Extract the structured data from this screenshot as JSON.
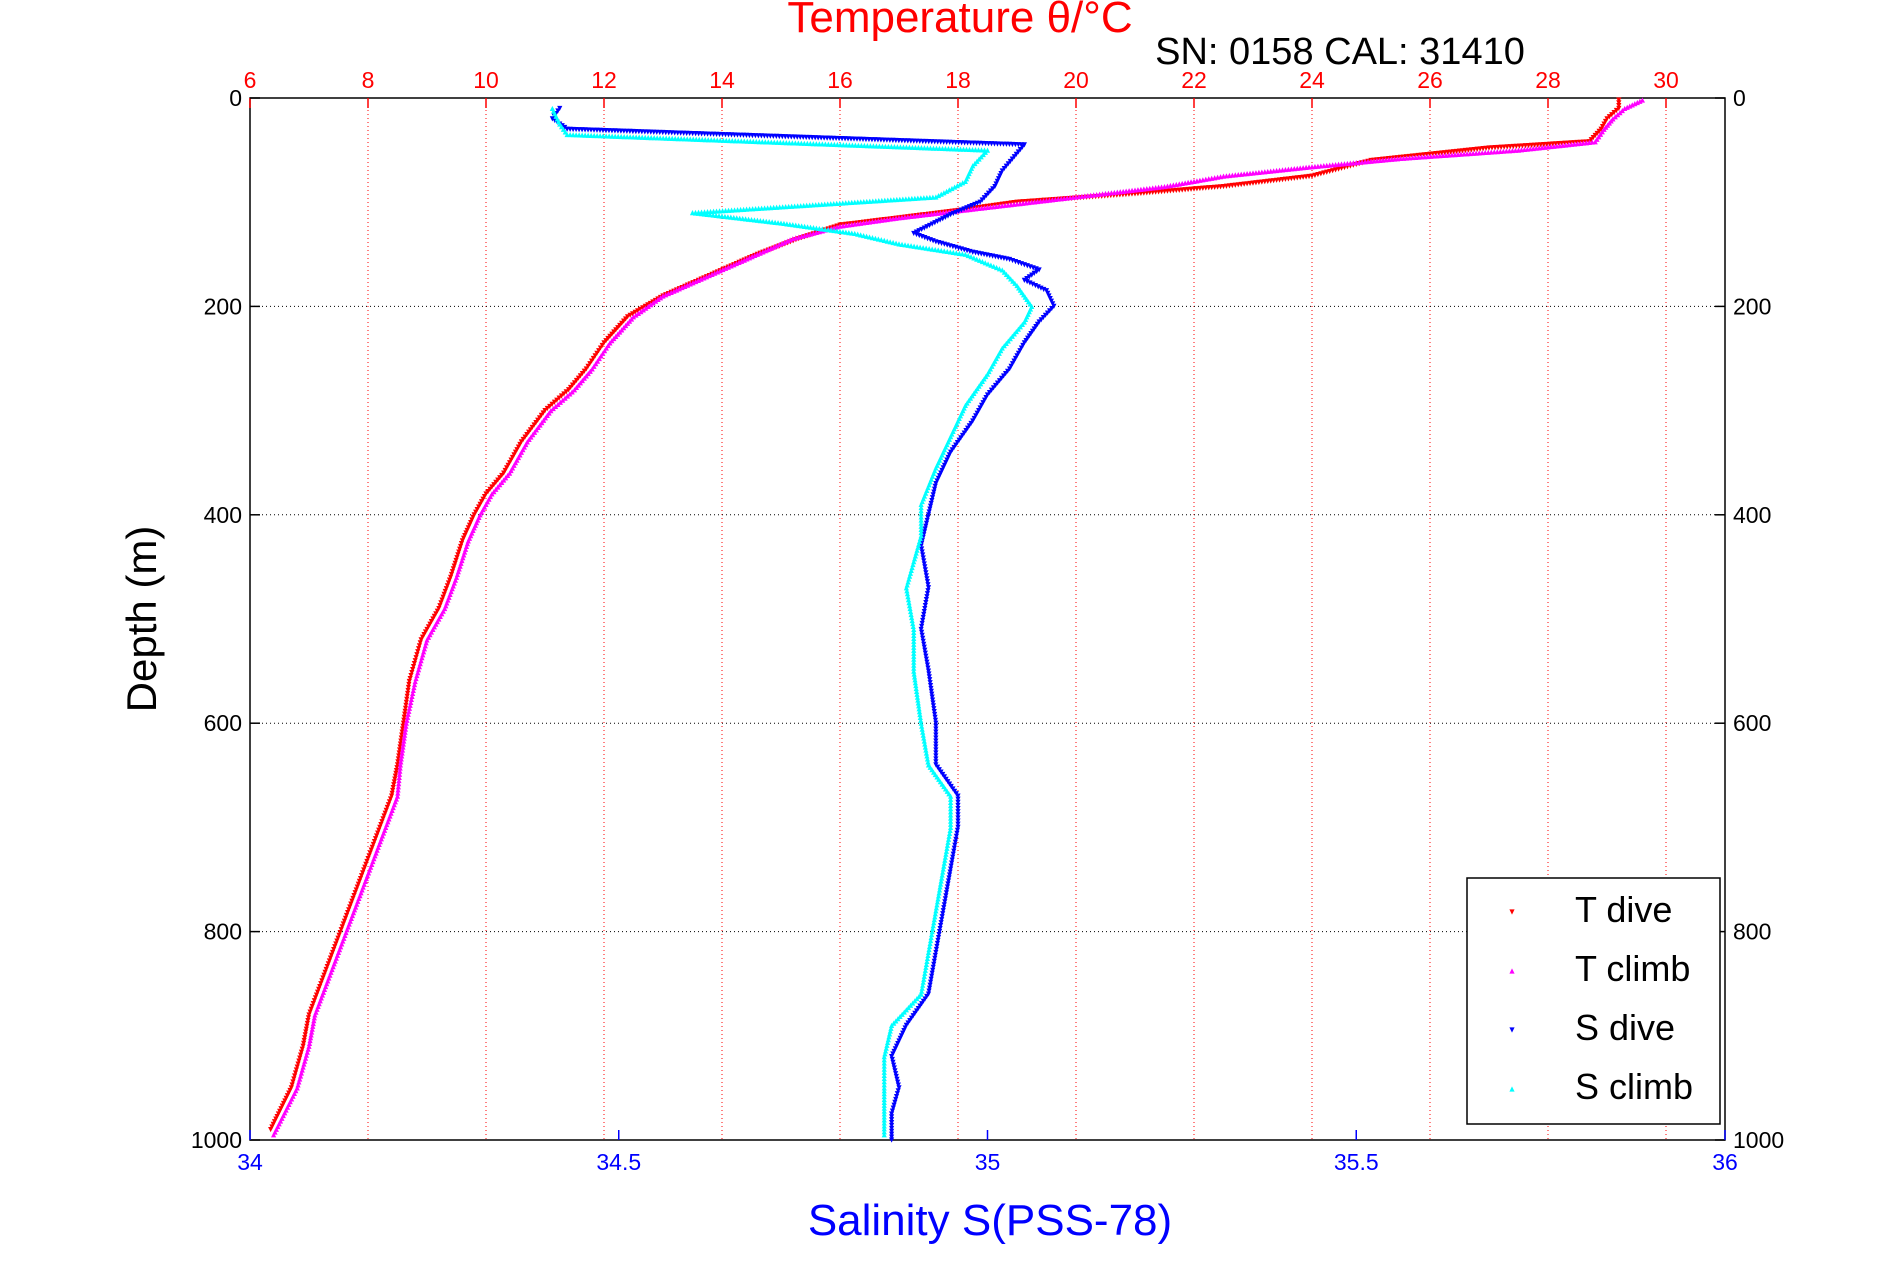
{
  "chart_data": {
    "type": "scatter",
    "top_axis": {
      "label": "Temperature θ/°C",
      "color": "#ff0000",
      "range": [
        6,
        31
      ],
      "ticks": [
        6,
        8,
        10,
        12,
        14,
        16,
        18,
        20,
        22,
        24,
        26,
        28,
        30
      ]
    },
    "bottom_axis": {
      "label": "Salinity S(PSS-78)",
      "color": "#0000ff",
      "range": [
        34,
        36
      ],
      "ticks": [
        "34",
        "34.5",
        "35",
        "35.5",
        "36"
      ]
    },
    "y_axis": {
      "label": "Depth (m)",
      "range": [
        0,
        1000
      ],
      "reversed": true,
      "ticks": [
        0,
        200,
        400,
        600,
        800,
        1000
      ]
    },
    "subtitle": "SN: 0158  CAL: 31410",
    "grid": "dotted",
    "legend_position": "bottom-right",
    "legend": [
      {
        "label": "T dive",
        "color": "#ff0000",
        "marker": "down-triangle"
      },
      {
        "label": "T climb",
        "color": "#ff00ff",
        "marker": "up-triangle"
      },
      {
        "label": "S dive",
        "color": "#0000ff",
        "marker": "down-triangle"
      },
      {
        "label": "S climb",
        "color": "#00ffff",
        "marker": "up-triangle"
      }
    ],
    "series": [
      {
        "name": "T dive",
        "axis": "temperature",
        "color": "#ff0000",
        "points": [
          [
            29.2,
            2
          ],
          [
            29.2,
            10
          ],
          [
            29.0,
            20
          ],
          [
            28.9,
            30
          ],
          [
            28.7,
            42
          ],
          [
            27,
            48
          ],
          [
            25,
            60
          ],
          [
            24,
            75
          ],
          [
            22.5,
            85
          ],
          [
            21,
            92
          ],
          [
            19,
            100
          ],
          [
            18,
            108
          ],
          [
            17,
            115
          ],
          [
            16,
            122
          ],
          [
            15.3,
            135
          ],
          [
            14.6,
            150
          ],
          [
            14.2,
            160
          ],
          [
            13.6,
            175
          ],
          [
            13,
            190
          ],
          [
            12.4,
            210
          ],
          [
            12,
            235
          ],
          [
            11.7,
            260
          ],
          [
            11.4,
            280
          ],
          [
            11,
            300
          ],
          [
            10.6,
            330
          ],
          [
            10.3,
            360
          ],
          [
            10,
            380
          ],
          [
            9.8,
            400
          ],
          [
            9.6,
            425
          ],
          [
            9.4,
            460
          ],
          [
            9.2,
            490
          ],
          [
            8.9,
            520
          ],
          [
            8.7,
            560
          ],
          [
            8.6,
            600
          ],
          [
            8.5,
            640
          ],
          [
            8.4,
            670
          ],
          [
            8.2,
            700
          ],
          [
            8.0,
            730
          ],
          [
            7.8,
            760
          ],
          [
            7.6,
            790
          ],
          [
            7.4,
            820
          ],
          [
            7.2,
            850
          ],
          [
            7.0,
            880
          ],
          [
            6.9,
            910
          ],
          [
            6.7,
            950
          ],
          [
            6.35,
            990
          ]
        ]
      },
      {
        "name": "T climb",
        "axis": "temperature",
        "color": "#ff00ff",
        "points": [
          [
            29.6,
            2
          ],
          [
            29.3,
            10
          ],
          [
            29.1,
            20
          ],
          [
            28.95,
            30
          ],
          [
            28.8,
            42
          ],
          [
            27.5,
            50
          ],
          [
            25.5,
            58
          ],
          [
            24,
            66
          ],
          [
            22.5,
            75
          ],
          [
            21.5,
            85
          ],
          [
            20,
            95
          ],
          [
            18.5,
            105
          ],
          [
            17,
            115
          ],
          [
            16,
            123
          ],
          [
            15.2,
            135
          ],
          [
            14.6,
            150
          ],
          [
            14.2,
            160
          ],
          [
            13.6,
            175
          ],
          [
            13,
            190
          ],
          [
            12.5,
            210
          ],
          [
            12.1,
            235
          ],
          [
            11.8,
            260
          ],
          [
            11.5,
            280
          ],
          [
            11.1,
            300
          ],
          [
            10.7,
            330
          ],
          [
            10.4,
            360
          ],
          [
            10.1,
            380
          ],
          [
            9.9,
            400
          ],
          [
            9.7,
            425
          ],
          [
            9.5,
            460
          ],
          [
            9.3,
            490
          ],
          [
            9.0,
            520
          ],
          [
            8.8,
            560
          ],
          [
            8.65,
            600
          ],
          [
            8.55,
            640
          ],
          [
            8.5,
            670
          ],
          [
            8.3,
            700
          ],
          [
            8.1,
            730
          ],
          [
            7.9,
            760
          ],
          [
            7.7,
            790
          ],
          [
            7.5,
            820
          ],
          [
            7.3,
            850
          ],
          [
            7.1,
            880
          ],
          [
            7.0,
            910
          ],
          [
            6.8,
            950
          ],
          [
            6.4,
            995
          ]
        ]
      },
      {
        "name": "S dive",
        "axis": "salinity",
        "color": "#0000ff",
        "points": [
          [
            34.42,
            10
          ],
          [
            34.41,
            20
          ],
          [
            34.43,
            30
          ],
          [
            35.05,
            45
          ],
          [
            35.02,
            70
          ],
          [
            35.01,
            85
          ],
          [
            34.99,
            100
          ],
          [
            34.95,
            112
          ],
          [
            34.9,
            130
          ],
          [
            34.93,
            138
          ],
          [
            34.98,
            148
          ],
          [
            35.03,
            155
          ],
          [
            35.07,
            165
          ],
          [
            35.05,
            175
          ],
          [
            35.08,
            185
          ],
          [
            35.09,
            200
          ],
          [
            35.07,
            215
          ],
          [
            35.05,
            235
          ],
          [
            35.03,
            260
          ],
          [
            35.0,
            285
          ],
          [
            34.98,
            310
          ],
          [
            34.95,
            340
          ],
          [
            34.93,
            370
          ],
          [
            34.92,
            400
          ],
          [
            34.91,
            430
          ],
          [
            34.92,
            470
          ],
          [
            34.91,
            510
          ],
          [
            34.92,
            550
          ],
          [
            34.93,
            600
          ],
          [
            34.93,
            640
          ],
          [
            34.96,
            670
          ],
          [
            34.96,
            700
          ],
          [
            34.95,
            740
          ],
          [
            34.94,
            780
          ],
          [
            34.93,
            820
          ],
          [
            34.92,
            860
          ],
          [
            34.89,
            890
          ],
          [
            34.87,
            920
          ],
          [
            34.88,
            950
          ],
          [
            34.87,
            975
          ],
          [
            34.87,
            1000
          ]
        ]
      },
      {
        "name": "S climb",
        "axis": "salinity",
        "color": "#00ffff",
        "points": [
          [
            34.41,
            10
          ],
          [
            34.42,
            25
          ],
          [
            34.43,
            35
          ],
          [
            35.0,
            50
          ],
          [
            34.98,
            65
          ],
          [
            34.97,
            80
          ],
          [
            34.93,
            95
          ],
          [
            34.6,
            110
          ],
          [
            34.72,
            120
          ],
          [
            34.82,
            130
          ],
          [
            34.88,
            140
          ],
          [
            34.97,
            150
          ],
          [
            35.02,
            165
          ],
          [
            35.04,
            180
          ],
          [
            35.06,
            200
          ],
          [
            35.05,
            215
          ],
          [
            35.02,
            240
          ],
          [
            35.0,
            265
          ],
          [
            34.97,
            295
          ],
          [
            34.95,
            325
          ],
          [
            34.93,
            355
          ],
          [
            34.91,
            390
          ],
          [
            34.91,
            420
          ],
          [
            34.89,
            470
          ],
          [
            34.9,
            510
          ],
          [
            34.9,
            550
          ],
          [
            34.91,
            600
          ],
          [
            34.92,
            640
          ],
          [
            34.95,
            670
          ],
          [
            34.95,
            700
          ],
          [
            34.94,
            740
          ],
          [
            34.93,
            780
          ],
          [
            34.92,
            820
          ],
          [
            34.91,
            860
          ],
          [
            34.87,
            890
          ],
          [
            34.86,
            920
          ],
          [
            34.86,
            950
          ],
          [
            34.86,
            975
          ],
          [
            34.86,
            995
          ]
        ]
      }
    ]
  }
}
